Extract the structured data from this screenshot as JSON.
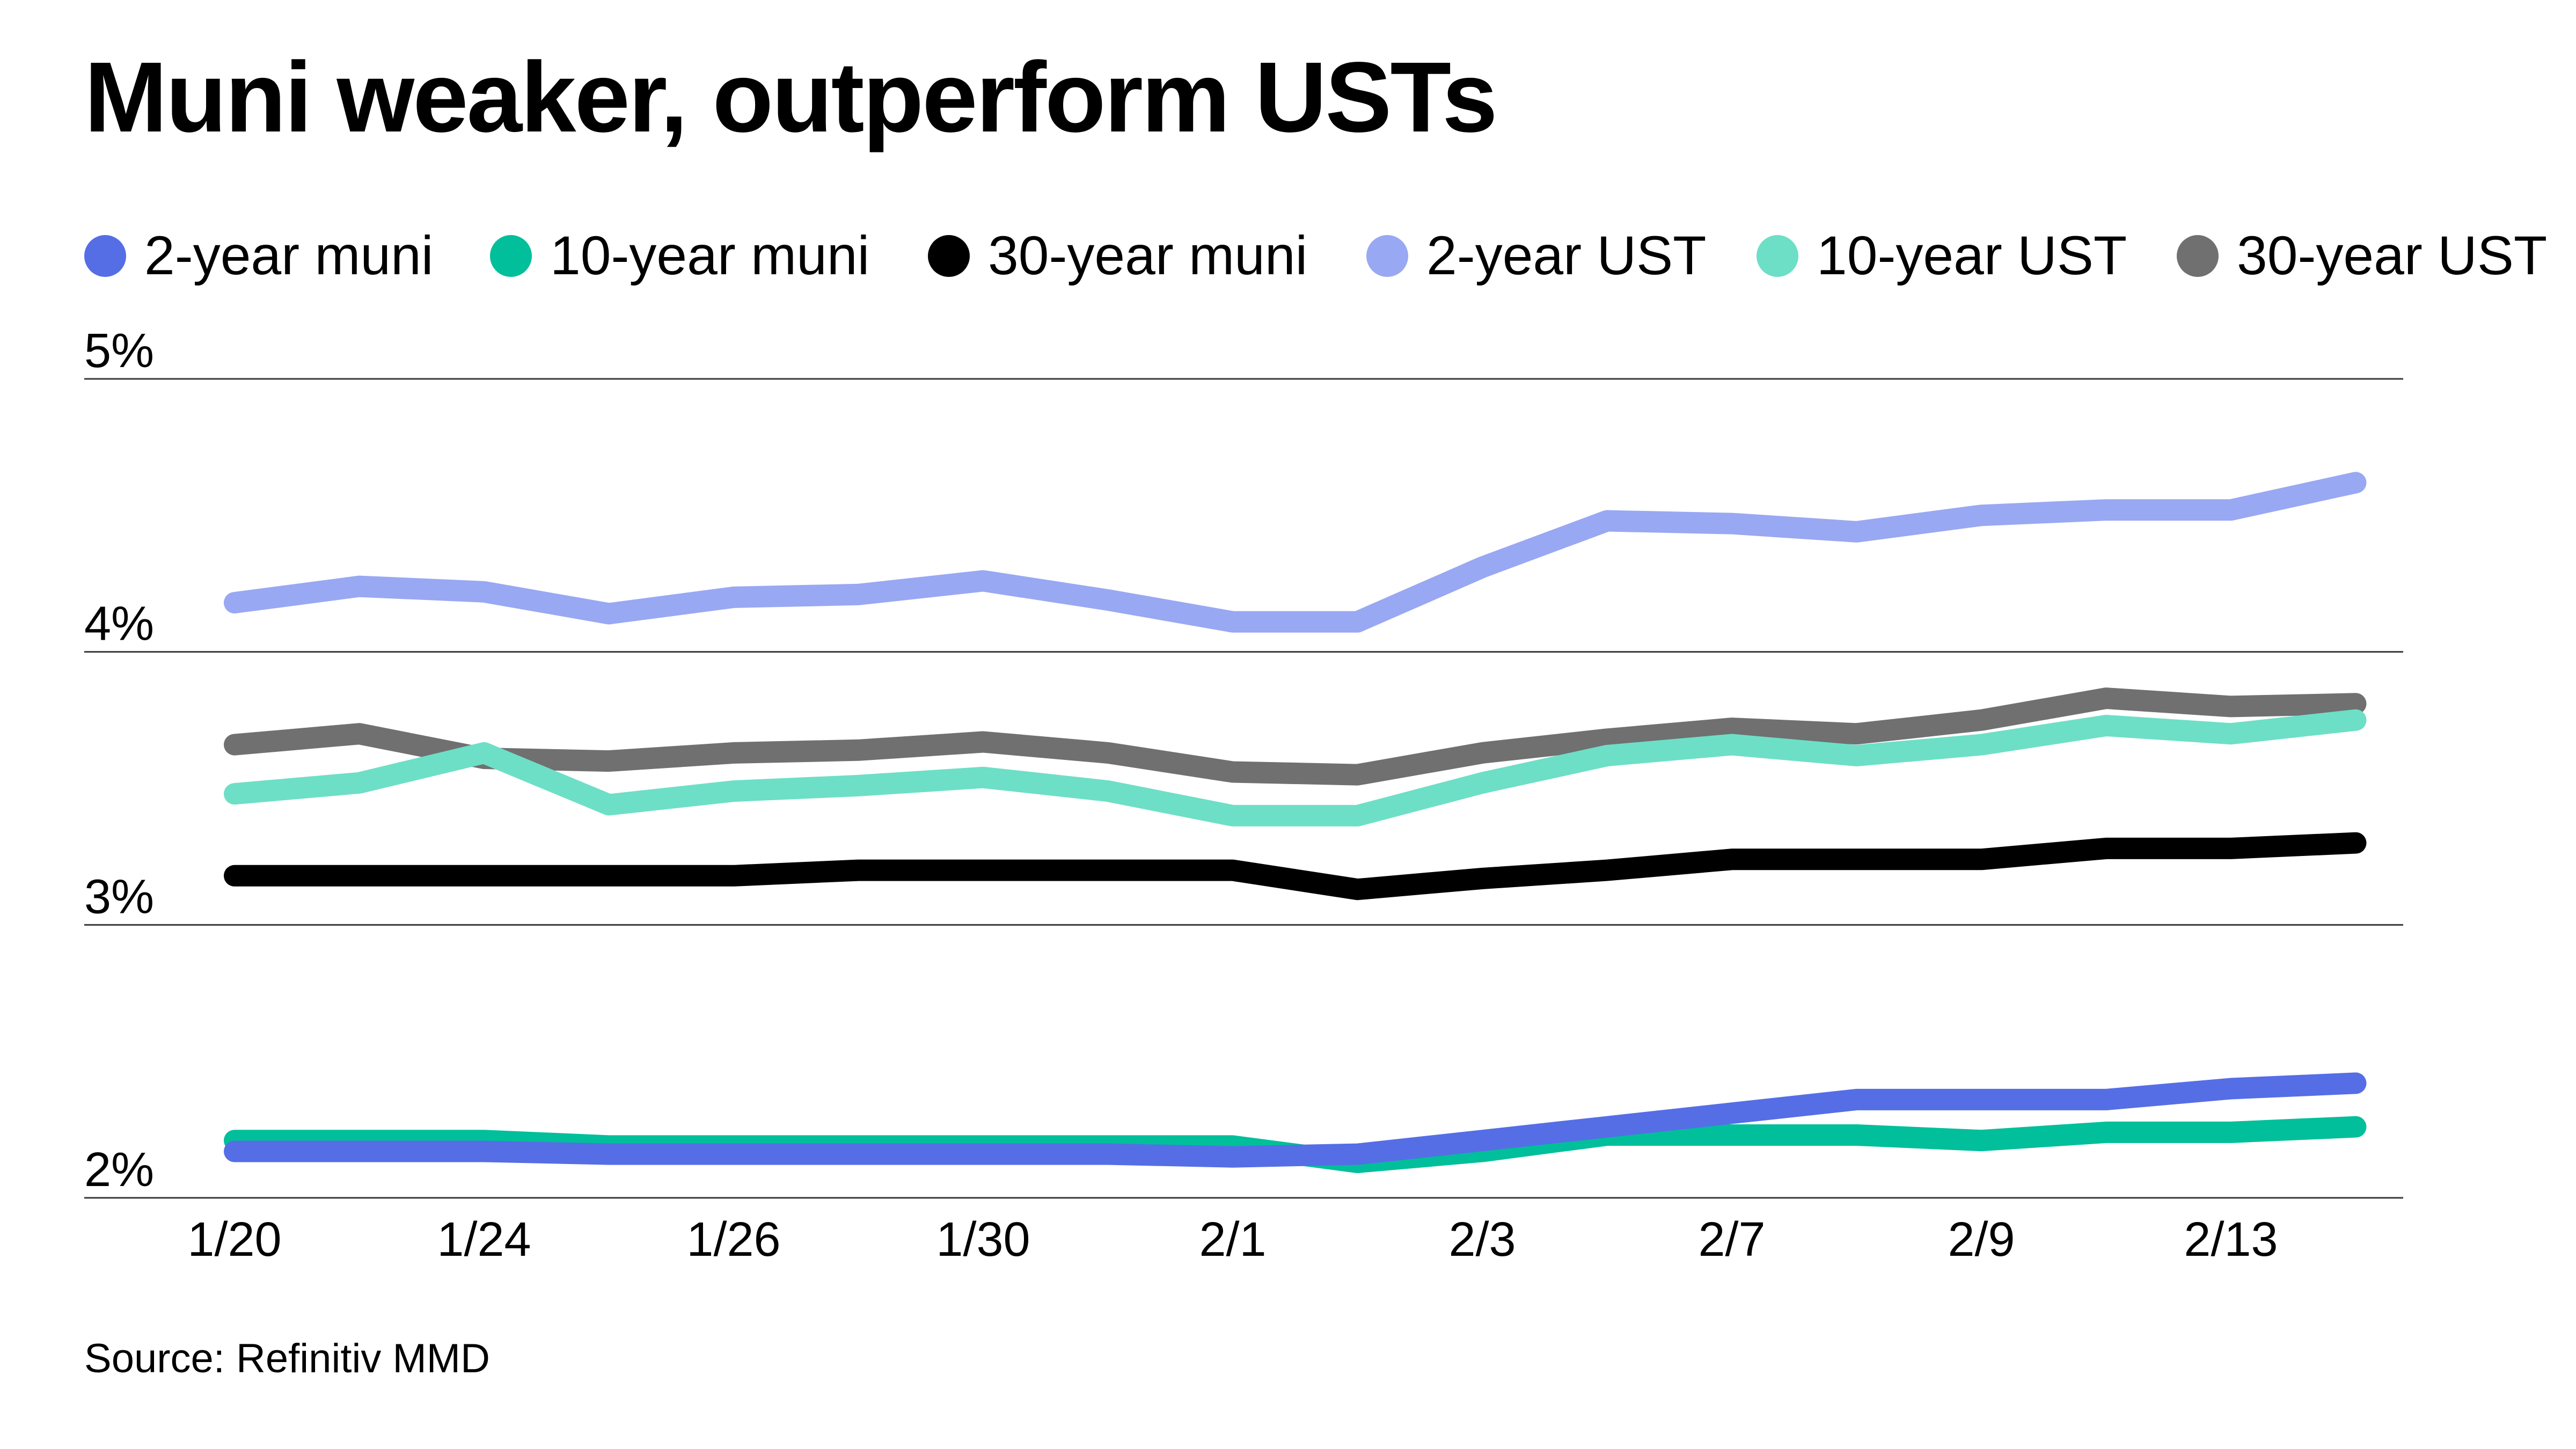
{
  "title": "Muni weaker, outperform USTs",
  "source": "Source: Refinitiv MMD",
  "chart_data": {
    "type": "line",
    "title": "Muni weaker, outperform USTs",
    "xlabel": "",
    "ylabel": "",
    "x_index": [
      0,
      1,
      2,
      3,
      4,
      5,
      6,
      7,
      8,
      9,
      10,
      11,
      12,
      13,
      14,
      15,
      16,
      17,
      18
    ],
    "x_tick_labels": [
      {
        "index": 0,
        "label": "1/20"
      },
      {
        "index": 2,
        "label": "1/24"
      },
      {
        "index": 4,
        "label": "1/26"
      },
      {
        "index": 6,
        "label": "1/30"
      },
      {
        "index": 8,
        "label": "2/1"
      },
      {
        "index": 10,
        "label": "2/3"
      },
      {
        "index": 12,
        "label": "2/7"
      },
      {
        "index": 14,
        "label": "2/9"
      },
      {
        "index": 16,
        "label": "2/13"
      }
    ],
    "y_ticks": [
      {
        "value": 2,
        "label": "2%"
      },
      {
        "value": 3,
        "label": "3%"
      },
      {
        "value": 4,
        "label": "4%"
      },
      {
        "value": 5,
        "label": "5%"
      }
    ],
    "ylim": [
      2,
      5
    ],
    "grid": "horizontal",
    "legend_position": "top",
    "series": [
      {
        "name": "2-year muni",
        "color": "#556ee6",
        "values": [
          2.17,
          2.17,
          2.17,
          2.16,
          2.16,
          2.16,
          2.16,
          2.16,
          2.15,
          2.16,
          2.21,
          2.26,
          2.31,
          2.36,
          2.36,
          2.36,
          2.4,
          2.42,
          null
        ]
      },
      {
        "name": "10-year muni",
        "color": "#00bf9a",
        "values": [
          2.21,
          2.21,
          2.21,
          2.19,
          2.19,
          2.19,
          2.19,
          2.19,
          2.19,
          2.13,
          2.17,
          2.23,
          2.23,
          2.23,
          2.21,
          2.24,
          2.24,
          2.26,
          null
        ]
      },
      {
        "name": "30-year muni",
        "color": "#000000",
        "values": [
          3.18,
          3.18,
          3.18,
          3.18,
          3.18,
          3.2,
          3.2,
          3.2,
          3.2,
          3.13,
          3.17,
          3.2,
          3.24,
          3.24,
          3.24,
          3.28,
          3.28,
          3.3,
          null
        ]
      },
      {
        "name": "2-year UST",
        "color": "#99a8f3",
        "values": [
          4.18,
          4.24,
          4.22,
          4.14,
          4.2,
          4.21,
          4.26,
          4.19,
          4.11,
          4.11,
          4.31,
          4.48,
          4.47,
          4.44,
          4.5,
          4.52,
          4.52,
          4.62,
          null
        ]
      },
      {
        "name": "10-year UST",
        "color": "#6ddfc6",
        "values": [
          3.48,
          3.52,
          3.63,
          3.44,
          3.49,
          3.51,
          3.54,
          3.49,
          3.4,
          3.4,
          3.52,
          3.62,
          3.66,
          3.62,
          3.66,
          3.73,
          3.7,
          3.75,
          null
        ]
      },
      {
        "name": "30-year UST",
        "color": "#707070",
        "values": [
          3.66,
          3.7,
          3.61,
          3.6,
          3.63,
          3.64,
          3.67,
          3.63,
          3.56,
          3.55,
          3.63,
          3.68,
          3.72,
          3.7,
          3.75,
          3.83,
          3.8,
          3.81,
          null
        ]
      }
    ]
  }
}
